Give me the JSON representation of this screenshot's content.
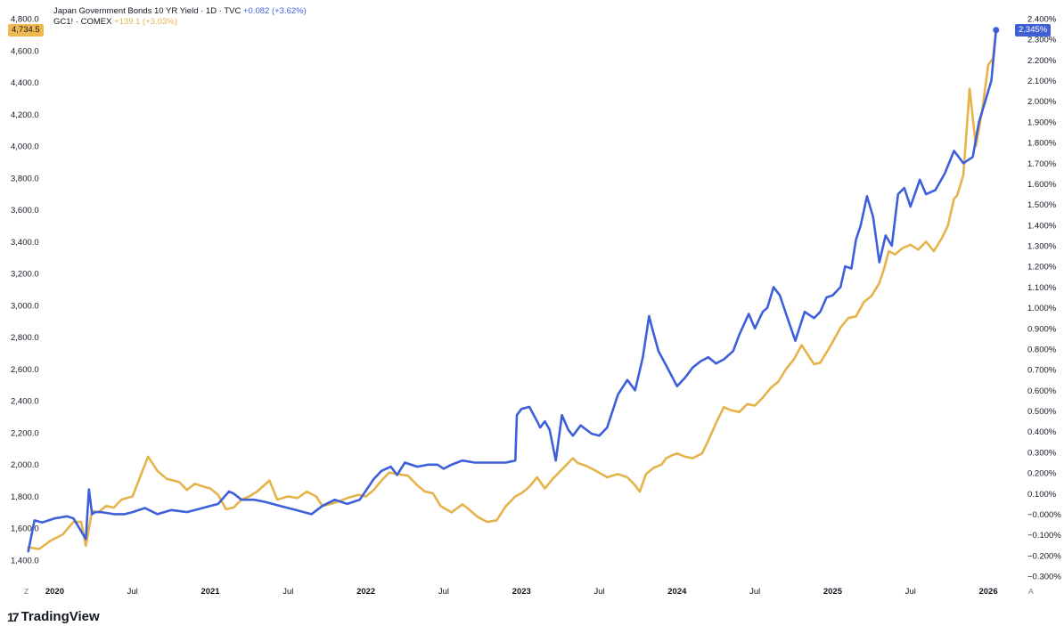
{
  "chart_data": {
    "type": "line",
    "legend": [
      {
        "name": "Japan Government Bonds 10 YR Yield · 1D · TVC",
        "change": "+0.082 (+3.62%)",
        "color": "#3d5fd9"
      },
      {
        "name": "GC1! · COMEX",
        "change": "+139.1 (+3.03%)",
        "color": "#e6b34a"
      }
    ],
    "last_value_left": "4,734.5",
    "last_value_right": "2.345%",
    "left_axis": {
      "ticks": [
        "1,400.0",
        "1,600.0",
        "1,800.0",
        "2,000.0",
        "2,200.0",
        "2,400.0",
        "2,600.0",
        "2,800.0",
        "3,000.0",
        "3,200.0",
        "3,400.0",
        "3,600.0",
        "3,800.0",
        "4,000.0",
        "4,200.0",
        "4,400.0",
        "4,600.0",
        "4,800.0"
      ],
      "ylim": [
        1400,
        4800
      ]
    },
    "right_axis": {
      "ticks": [
        "−0.300%",
        "−0.200%",
        "−0.100%",
        "−0.000%",
        "0.100%",
        "0.200%",
        "0.300%",
        "0.400%",
        "0.500%",
        "0.600%",
        "0.700%",
        "0.800%",
        "0.900%",
        "1.000%",
        "1.100%",
        "1.200%",
        "1.300%",
        "1.400%",
        "1.500%",
        "1.600%",
        "1.700%",
        "1.800%",
        "1.900%",
        "2.000%",
        "2.100%",
        "2.200%",
        "2.300%",
        "2.400%"
      ],
      "ylim": [
        -0.3,
        2.4
      ]
    },
    "x_ticks": [
      {
        "label": "2020",
        "t": 2020.0,
        "bold": true
      },
      {
        "label": "Jul",
        "t": 2020.5,
        "bold": false
      },
      {
        "label": "2021",
        "t": 2021.0,
        "bold": true
      },
      {
        "label": "Jul",
        "t": 2021.5,
        "bold": false
      },
      {
        "label": "2022",
        "t": 2022.0,
        "bold": true
      },
      {
        "label": "Jul",
        "t": 2022.5,
        "bold": false
      },
      {
        "label": "2023",
        "t": 2023.0,
        "bold": true
      },
      {
        "label": "Jul",
        "t": 2023.5,
        "bold": false
      },
      {
        "label": "2024",
        "t": 2024.0,
        "bold": true
      },
      {
        "label": "Jul",
        "t": 2024.5,
        "bold": false
      },
      {
        "label": "2025",
        "t": 2025.0,
        "bold": true
      },
      {
        "label": "Jul",
        "t": 2025.5,
        "bold": false
      },
      {
        "label": "2026",
        "t": 2026.0,
        "bold": true
      }
    ],
    "xlim": [
      2019.82,
      2026.12
    ],
    "series": [
      {
        "name": "GC1! · COMEX",
        "axis": "left",
        "color": "#e6b34a",
        "x": [
          2019.83,
          2019.9,
          2019.97,
          2020.05,
          2020.12,
          2020.17,
          2020.2,
          2020.24,
          2020.28,
          2020.33,
          2020.38,
          2020.43,
          2020.5,
          2020.56,
          2020.6,
          2020.66,
          2020.72,
          2020.8,
          2020.85,
          2020.9,
          2020.96,
          2021.0,
          2021.05,
          2021.1,
          2021.15,
          2021.2,
          2021.25,
          2021.3,
          2021.38,
          2021.43,
          2021.5,
          2021.56,
          2021.62,
          2021.68,
          2021.72,
          2021.8,
          2021.88,
          2021.95,
          2022.0,
          2022.05,
          2022.1,
          2022.15,
          2022.2,
          2022.27,
          2022.33,
          2022.38,
          2022.43,
          2022.48,
          2022.55,
          2022.62,
          2022.66,
          2022.72,
          2022.78,
          2022.84,
          2022.9,
          2022.96,
          2023.0,
          2023.05,
          2023.1,
          2023.15,
          2023.2,
          2023.27,
          2023.33,
          2023.36,
          2023.42,
          2023.48,
          2023.55,
          2023.62,
          2023.68,
          2023.73,
          2023.76,
          2023.8,
          2023.85,
          2023.9,
          2023.93,
          2023.97,
          2024.0,
          2024.05,
          2024.1,
          2024.16,
          2024.2,
          2024.25,
          2024.3,
          2024.35,
          2024.4,
          2024.45,
          2024.5,
          2024.55,
          2024.6,
          2024.65,
          2024.7,
          2024.75,
          2024.8,
          2024.84,
          2024.88,
          2024.92,
          2024.97,
          2025.0,
          2025.05,
          2025.1,
          2025.15,
          2025.2,
          2025.25,
          2025.3,
          2025.33,
          2025.36,
          2025.4,
          2025.45,
          2025.5,
          2025.55,
          2025.6,
          2025.65,
          2025.7,
          2025.74,
          2025.78,
          2025.8,
          2025.84,
          2025.88,
          2025.92,
          2025.96,
          2026.0,
          2026.03,
          2026.05
        ],
        "y": [
          1480,
          1470,
          1520,
          1560,
          1640,
          1640,
          1490,
          1710,
          1700,
          1740,
          1730,
          1780,
          1800,
          1950,
          2050,
          1960,
          1910,
          1890,
          1840,
          1880,
          1860,
          1850,
          1810,
          1720,
          1730,
          1780,
          1800,
          1830,
          1900,
          1780,
          1800,
          1790,
          1830,
          1800,
          1740,
          1760,
          1790,
          1810,
          1800,
          1840,
          1900,
          1950,
          1940,
          1930,
          1870,
          1830,
          1820,
          1740,
          1700,
          1750,
          1720,
          1670,
          1640,
          1650,
          1740,
          1800,
          1820,
          1860,
          1920,
          1850,
          1910,
          1980,
          2040,
          2010,
          1990,
          1960,
          1920,
          1940,
          1920,
          1870,
          1830,
          1940,
          1980,
          2000,
          2040,
          2060,
          2070,
          2050,
          2040,
          2070,
          2150,
          2260,
          2360,
          2340,
          2330,
          2380,
          2370,
          2420,
          2480,
          2520,
          2600,
          2660,
          2750,
          2690,
          2630,
          2640,
          2720,
          2770,
          2860,
          2920,
          2930,
          3020,
          3060,
          3140,
          3230,
          3340,
          3320,
          3360,
          3380,
          3350,
          3400,
          3340,
          3420,
          3500,
          3670,
          3690,
          3820,
          4360,
          4000,
          4220,
          4510,
          4550,
          4734.5
        ]
      },
      {
        "name": "Japan Government Bonds 10 YR Yield",
        "axis": "right",
        "color": "#3d5fd9",
        "x": [
          2019.83,
          2019.87,
          2019.92,
          2020.0,
          2020.08,
          2020.12,
          2020.2,
          2020.22,
          2020.24,
          2020.26,
          2020.3,
          2020.38,
          2020.45,
          2020.5,
          2020.58,
          2020.66,
          2020.75,
          2020.85,
          2020.95,
          2021.05,
          2021.12,
          2021.15,
          2021.2,
          2021.28,
          2021.35,
          2021.45,
          2021.55,
          2021.65,
          2021.72,
          2021.8,
          2021.88,
          2021.96,
          2022.05,
          2022.1,
          2022.16,
          2022.2,
          2022.25,
          2022.33,
          2022.4,
          2022.46,
          2022.5,
          2022.55,
          2022.62,
          2022.7,
          2022.8,
          2022.9,
          2022.96,
          2022.97,
          2023.0,
          2023.05,
          2023.1,
          2023.12,
          2023.15,
          2023.18,
          2023.22,
          2023.26,
          2023.3,
          2023.33,
          2023.38,
          2023.45,
          2023.5,
          2023.55,
          2023.62,
          2023.68,
          2023.73,
          2023.78,
          2023.82,
          2023.84,
          2023.88,
          2023.93,
          2024.0,
          2024.05,
          2024.1,
          2024.15,
          2024.2,
          2024.25,
          2024.3,
          2024.36,
          2024.4,
          2024.46,
          2024.5,
          2024.55,
          2024.58,
          2024.62,
          2024.66,
          2024.7,
          2024.76,
          2024.82,
          2024.88,
          2024.92,
          2024.96,
          2025.0,
          2025.05,
          2025.08,
          2025.12,
          2025.15,
          2025.18,
          2025.2,
          2025.22,
          2025.26,
          2025.3,
          2025.34,
          2025.38,
          2025.42,
          2025.46,
          2025.5,
          2025.56,
          2025.6,
          2025.66,
          2025.72,
          2025.78,
          2025.84,
          2025.9,
          2025.94,
          2025.98,
          2026.02,
          2026.05
        ],
        "y": [
          -0.18,
          -0.03,
          -0.04,
          -0.02,
          -0.01,
          -0.02,
          -0.12,
          0.12,
          0.0,
          0.01,
          0.01,
          0.0,
          0.0,
          0.01,
          0.03,
          0.0,
          0.02,
          0.01,
          0.03,
          0.05,
          0.11,
          0.1,
          0.07,
          0.07,
          0.06,
          0.04,
          0.02,
          0.0,
          0.04,
          0.07,
          0.05,
          0.07,
          0.17,
          0.21,
          0.23,
          0.19,
          0.25,
          0.23,
          0.24,
          0.24,
          0.22,
          0.24,
          0.26,
          0.25,
          0.25,
          0.25,
          0.26,
          0.48,
          0.51,
          0.52,
          0.45,
          0.42,
          0.45,
          0.41,
          0.26,
          0.48,
          0.41,
          0.38,
          0.43,
          0.39,
          0.38,
          0.42,
          0.58,
          0.65,
          0.6,
          0.76,
          0.96,
          0.9,
          0.79,
          0.72,
          0.62,
          0.66,
          0.71,
          0.74,
          0.76,
          0.73,
          0.75,
          0.79,
          0.87,
          0.97,
          0.9,
          0.98,
          1.0,
          1.1,
          1.06,
          0.97,
          0.84,
          0.98,
          0.95,
          0.98,
          1.05,
          1.06,
          1.1,
          1.2,
          1.19,
          1.33,
          1.4,
          1.47,
          1.54,
          1.44,
          1.22,
          1.35,
          1.3,
          1.55,
          1.58,
          1.49,
          1.62,
          1.55,
          1.57,
          1.65,
          1.76,
          1.7,
          1.73,
          1.9,
          2.0,
          2.1,
          2.345
        ]
      }
    ]
  }
}
